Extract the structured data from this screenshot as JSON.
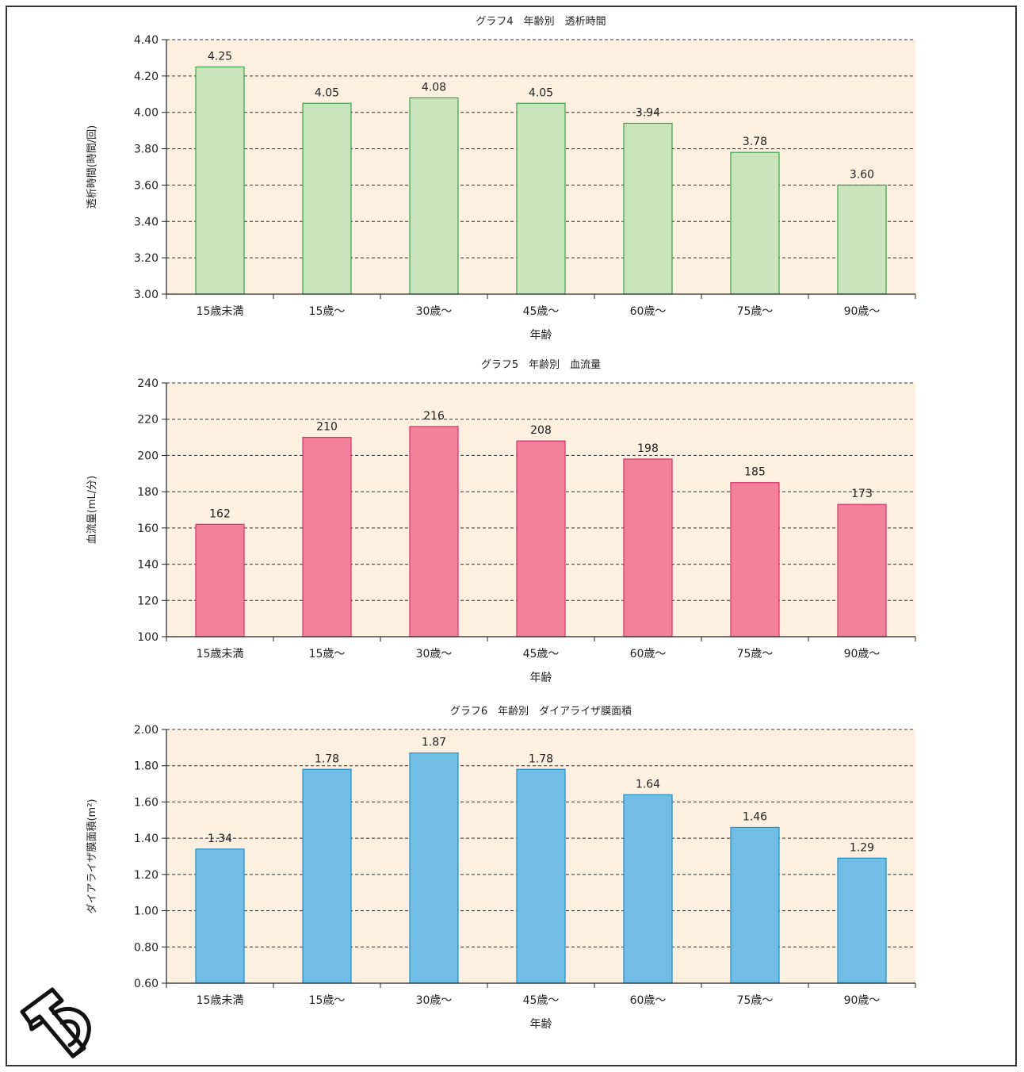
{
  "colors": {
    "plot_bg": "#fdf0e0",
    "grid": "#333333",
    "axis": "#222222",
    "text": "#222222"
  },
  "chart_data": [
    {
      "type": "bar",
      "title": "グラフ4　年齢別　透析時間",
      "xlabel": "年齢",
      "ylabel": "透析時間(時間/回)",
      "categories": [
        "15歳未満",
        "15歳〜",
        "30歳〜",
        "45歳〜",
        "60歳〜",
        "75歳〜",
        "90歳〜"
      ],
      "values": [
        4.25,
        4.05,
        4.08,
        4.05,
        3.94,
        3.78,
        3.6
      ],
      "value_labels": [
        "4.25",
        "4.05",
        "4.08",
        "4.05",
        "3.94",
        "3.78",
        "3.60"
      ],
      "ylim": [
        3.0,
        4.4
      ],
      "yticks": [
        "3.00",
        "3.20",
        "3.40",
        "3.60",
        "3.80",
        "4.00",
        "4.20",
        "4.40"
      ],
      "grid": true,
      "bar_fill": "#c9e3bb",
      "bar_stroke": "#3aa34a"
    },
    {
      "type": "bar",
      "title": "グラフ5　年齢別　血流量",
      "xlabel": "年齢",
      "ylabel": "血流量(mL/分)",
      "categories": [
        "15歳未満",
        "15歳〜",
        "30歳〜",
        "45歳〜",
        "60歳〜",
        "75歳〜",
        "90歳〜"
      ],
      "values": [
        162,
        210,
        216,
        208,
        198,
        185,
        173
      ],
      "value_labels": [
        "162",
        "210",
        "216",
        "208",
        "198",
        "185",
        "173"
      ],
      "ylim": [
        100,
        240
      ],
      "yticks": [
        "100",
        "120",
        "140",
        "160",
        "180",
        "200",
        "220",
        "240"
      ],
      "grid": true,
      "bar_fill": "#f28299",
      "bar_stroke": "#d6336b"
    },
    {
      "type": "bar",
      "title": "グラフ6　年齢別　ダイアライザ膜面積",
      "xlabel": "年齢",
      "ylabel": "ダイアライザ膜面積(m²)",
      "categories": [
        "15歳未満",
        "15歳〜",
        "30歳〜",
        "45歳〜",
        "60歳〜",
        "75歳〜",
        "90歳〜"
      ],
      "values": [
        1.34,
        1.78,
        1.87,
        1.78,
        1.64,
        1.46,
        1.29
      ],
      "value_labels": [
        "1.34",
        "1.78",
        "1.87",
        "1.78",
        "1.64",
        "1.46",
        "1.29"
      ],
      "ylim": [
        0.6,
        2.0
      ],
      "yticks": [
        "0.60",
        "0.80",
        "1.00",
        "1.20",
        "1.40",
        "1.60",
        "1.80",
        "2.00"
      ],
      "grid": true,
      "bar_fill": "#71bde6",
      "bar_stroke": "#1e8fc8"
    }
  ]
}
